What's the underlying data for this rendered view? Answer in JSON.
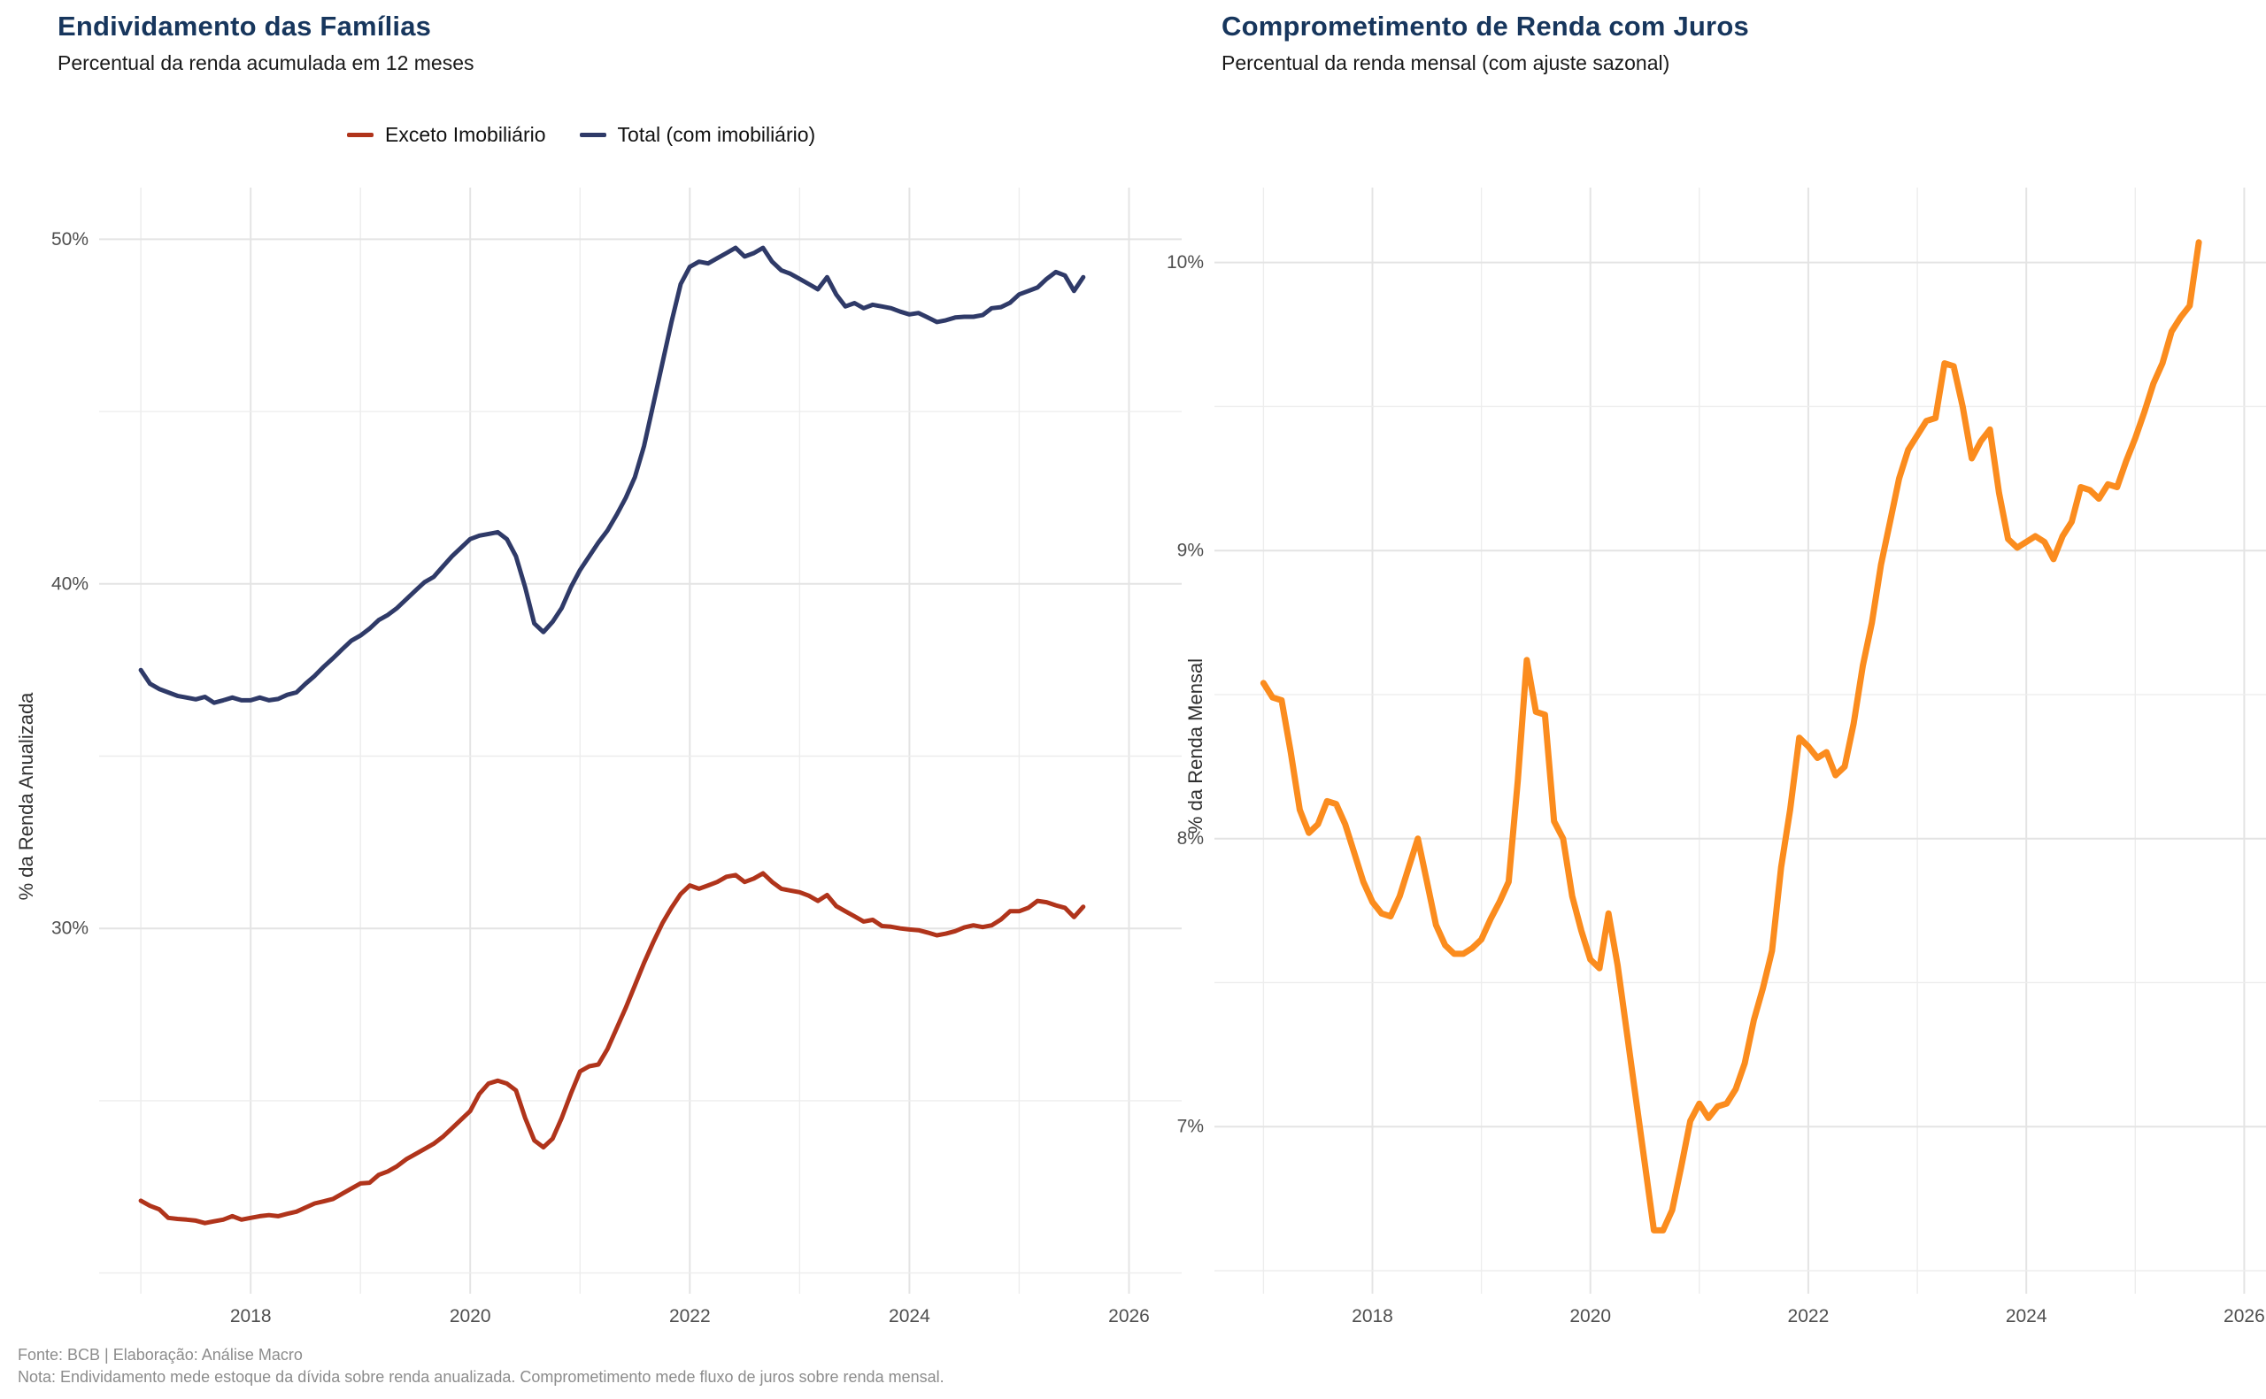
{
  "captions": {
    "source": "Fonte: BCB | Elaboração: Análise Macro",
    "note": "Nota: Endividamento mede estoque da dívida sobre renda anualizada. Comprometimento mede fluxo de juros sobre renda mensal."
  },
  "colors": {
    "title": "#17365D",
    "grid_major": "#E4E4E4",
    "grid_minor": "#EDEDED",
    "tick_text": "#4F4F4F"
  },
  "chart_data": [
    {
      "id": "endividamento",
      "type": "line",
      "title": "Endividamento das Famílias",
      "subtitle": "Percentual da renda acumulada em 12 meses",
      "title_color": "#17365D",
      "x_start_year": 2017,
      "points_per_year": 12,
      "line_width": 5,
      "x_axis": {
        "min": 2016.62,
        "max": 2026.48,
        "tick_labels": [
          2018,
          2020,
          2022,
          2024,
          2026
        ]
      },
      "y_axis": {
        "label": "% da Renda Anualizada",
        "min": 19.4,
        "max": 51.5,
        "major_ticks": [
          30,
          40,
          50
        ],
        "minor_ticks": [
          20,
          25,
          35,
          45
        ],
        "tick_suffix": "%"
      },
      "legend": {
        "items": [
          "Exceto Imobiliário",
          "Total (com imobiliário)"
        ]
      },
      "series": [
        {
          "name": "Exceto Imobiliário",
          "color": "#B0341B",
          "values": [
            22.1,
            21.95,
            21.85,
            21.6,
            21.57,
            21.55,
            21.52,
            21.45,
            21.5,
            21.55,
            21.65,
            21.55,
            21.6,
            21.65,
            21.68,
            21.65,
            21.72,
            21.78,
            21.9,
            22.02,
            22.08,
            22.15,
            22.3,
            22.45,
            22.6,
            22.62,
            22.85,
            22.95,
            23.1,
            23.3,
            23.45,
            23.6,
            23.75,
            23.95,
            24.2,
            24.45,
            24.7,
            25.2,
            25.5,
            25.58,
            25.5,
            25.3,
            24.5,
            23.85,
            23.65,
            23.9,
            24.5,
            25.2,
            25.85,
            26.0,
            26.05,
            26.5,
            27.1,
            27.7,
            28.35,
            29.0,
            29.6,
            30.15,
            30.6,
            31.0,
            31.25,
            31.15,
            31.25,
            31.35,
            31.5,
            31.55,
            31.35,
            31.45,
            31.6,
            31.35,
            31.15,
            31.1,
            31.05,
            30.95,
            30.8,
            30.97,
            30.65,
            30.5,
            30.35,
            30.2,
            30.25,
            30.07,
            30.05,
            30.0,
            29.97,
            29.95,
            29.88,
            29.8,
            29.85,
            29.92,
            30.03,
            30.09,
            30.04,
            30.09,
            30.26,
            30.5,
            30.5,
            30.6,
            30.8,
            30.76,
            30.67,
            30.6,
            30.33,
            30.63
          ]
        },
        {
          "name": "Total (com imobiliário)",
          "color": "#2F3A68",
          "values": [
            37.5,
            37.1,
            36.95,
            36.85,
            36.75,
            36.7,
            36.65,
            36.72,
            36.55,
            36.62,
            36.7,
            36.62,
            36.62,
            36.7,
            36.62,
            36.66,
            36.78,
            36.85,
            37.1,
            37.33,
            37.6,
            37.84,
            38.1,
            38.35,
            38.5,
            38.7,
            38.95,
            39.1,
            39.3,
            39.55,
            39.8,
            40.05,
            40.2,
            40.5,
            40.8,
            41.05,
            41.3,
            41.4,
            41.45,
            41.5,
            41.3,
            40.8,
            39.9,
            38.85,
            38.6,
            38.9,
            39.3,
            39.9,
            40.4,
            40.8,
            41.2,
            41.55,
            42.0,
            42.5,
            43.1,
            44.0,
            45.2,
            46.4,
            47.6,
            48.7,
            49.2,
            49.35,
            49.3,
            49.45,
            49.6,
            49.75,
            49.5,
            49.6,
            49.75,
            49.35,
            49.1,
            49.0,
            48.85,
            48.7,
            48.55,
            48.9,
            48.4,
            48.05,
            48.15,
            48.0,
            48.1,
            48.05,
            48.0,
            47.9,
            47.82,
            47.86,
            47.73,
            47.6,
            47.65,
            47.73,
            47.75,
            47.75,
            47.8,
            48.0,
            48.03,
            48.16,
            48.4,
            48.5,
            48.6,
            48.85,
            49.05,
            48.95,
            48.5,
            48.9
          ]
        }
      ]
    },
    {
      "id": "comprometimento",
      "type": "line",
      "title": "Comprometimento de Renda com Juros",
      "subtitle": "Percentual da renda mensal (com ajuste sazonal)",
      "title_color": "#17365D",
      "x_start_year": 2017,
      "points_per_year": 12,
      "line_width": 7,
      "x_axis": {
        "min": 2016.55,
        "max": 2026.2,
        "tick_labels": [
          2018,
          2020,
          2022,
          2024,
          2026
        ]
      },
      "y_axis": {
        "label": "% da Renda Mensal",
        "min": 6.42,
        "max": 10.26,
        "major_ticks": [
          7,
          8,
          9,
          10
        ],
        "minor_ticks": [
          6.5,
          7.5,
          8.5,
          9.5
        ],
        "tick_suffix": "%"
      },
      "series": [
        {
          "name": "Comprometimento de renda com juros",
          "color": "#FB8C1E",
          "values": [
            8.54,
            8.49,
            8.48,
            8.3,
            8.1,
            8.02,
            8.05,
            8.13,
            8.12,
            8.05,
            7.95,
            7.85,
            7.78,
            7.74,
            7.73,
            7.8,
            7.9,
            8.0,
            7.85,
            7.7,
            7.63,
            7.6,
            7.6,
            7.62,
            7.65,
            7.72,
            7.78,
            7.85,
            8.2,
            8.62,
            8.44,
            8.43,
            8.06,
            8.0,
            7.8,
            7.68,
            7.58,
            7.55,
            7.74,
            7.56,
            7.33,
            7.1,
            6.87,
            6.64,
            6.64,
            6.71,
            6.86,
            7.02,
            7.08,
            7.03,
            7.07,
            7.08,
            7.13,
            7.22,
            7.37,
            7.48,
            7.61,
            7.9,
            8.1,
            8.35,
            8.32,
            8.28,
            8.3,
            8.22,
            8.25,
            8.4,
            8.6,
            8.75,
            8.95,
            9.1,
            9.25,
            9.35,
            9.4,
            9.45,
            9.46,
            9.65,
            9.64,
            9.5,
            9.32,
            9.38,
            9.42,
            9.2,
            9.04,
            9.01,
            9.03,
            9.05,
            9.03,
            8.97,
            9.05,
            9.1,
            9.22,
            9.21,
            9.18,
            9.23,
            9.22,
            9.31,
            9.39,
            9.48,
            9.58,
            9.65,
            9.76,
            9.81,
            9.85,
            10.07
          ]
        }
      ]
    }
  ]
}
